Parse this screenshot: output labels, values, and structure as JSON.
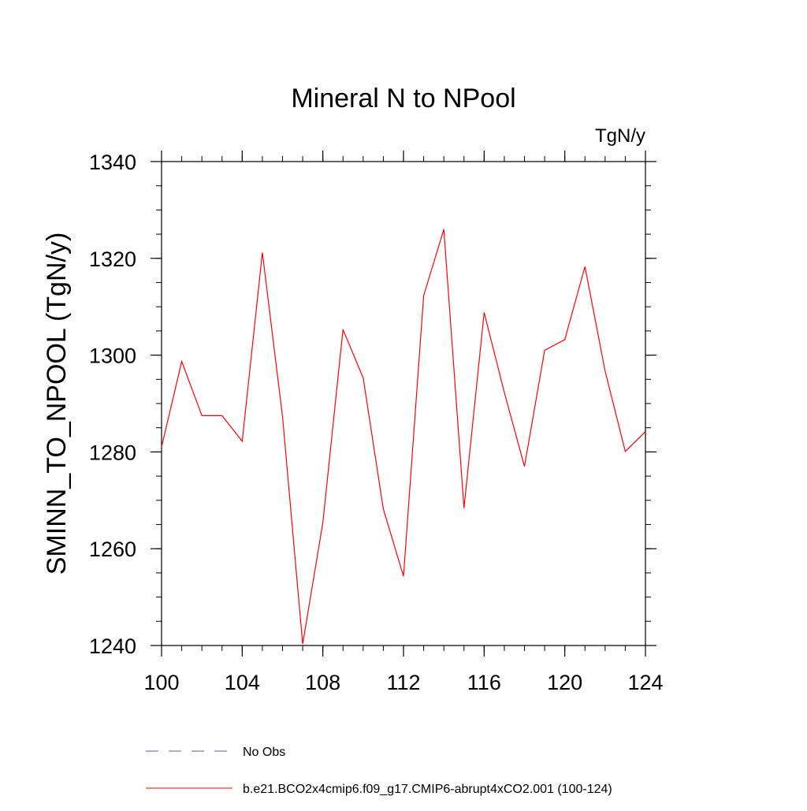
{
  "chart_data": {
    "type": "line",
    "title": "Mineral N to NPool",
    "units_label": "TgN/y",
    "xlabel": "",
    "ylabel": "SMINN_TO_NPOOL  (TgN/y)",
    "xlim": [
      100,
      124
    ],
    "ylim": [
      1240,
      1340
    ],
    "x_ticks": [
      100,
      104,
      108,
      112,
      116,
      120,
      124
    ],
    "y_ticks": [
      1240,
      1260,
      1280,
      1300,
      1320,
      1340
    ],
    "x_minor_step": 1,
    "y_minor_step": 5,
    "grid": false,
    "legend_position": "bottom",
    "series": [
      {
        "name": "No Obs",
        "color": "#5b56b8",
        "dash": "dashed",
        "x": [],
        "values": []
      },
      {
        "name": "b.e21.BCO2x4cmip6.f09_g17.CMIP6-abrupt4xCO2.001 (100-124)",
        "color": "#ff0000",
        "dash": "solid",
        "x": [
          100,
          101,
          102,
          103,
          104,
          105,
          106,
          107,
          108,
          109,
          110,
          111,
          112,
          113,
          114,
          115,
          116,
          117,
          118,
          119,
          120,
          121,
          122,
          123,
          124
        ],
        "values": [
          1281,
          1298.7,
          1287.5,
          1287.5,
          1282.2,
          1321.2,
          1287.3,
          1240.3,
          1265.4,
          1305.3,
          1295.3,
          1268.2,
          1254.3,
          1312.3,
          1326.0,
          1268.4,
          1308.8,
          1292.3,
          1277.0,
          1301.0,
          1303.2,
          1318.3,
          1296.7,
          1280.1,
          1284.2
        ]
      }
    ]
  }
}
